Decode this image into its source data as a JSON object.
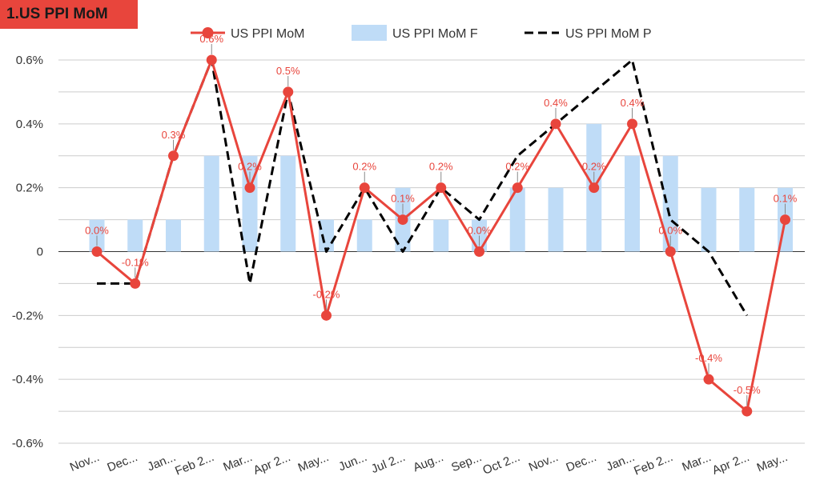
{
  "chart_data": {
    "type": "bar+line",
    "title": "1.US PPI MoM",
    "categories": [
      "Nov...",
      "Dec...",
      "Jan...",
      "Feb 2...",
      "Mar...",
      "Apr 2...",
      "May...",
      "Jun...",
      "Jul 2...",
      "Aug...",
      "Sep...",
      "Oct 2...",
      "Nov...",
      "Dec...",
      "Jan...",
      "Feb 2...",
      "Mar...",
      "Apr 2...",
      "May..."
    ],
    "series": [
      {
        "name": "US PPI MoM",
        "kind": "line-marker",
        "color": "#e8453c",
        "values": [
          0.0,
          -0.1,
          0.3,
          0.6,
          0.2,
          0.5,
          -0.2,
          0.2,
          0.1,
          0.2,
          0.0,
          0.2,
          0.4,
          0.2,
          0.4,
          0.0,
          -0.4,
          -0.5,
          0.1
        ],
        "labels": [
          "0.0%",
          "-0.1%",
          "0.3%",
          "0.6%",
          "0.2%",
          "0.5%",
          "-0.2%",
          "0.2%",
          "0.1%",
          "0.2%",
          "0.0%",
          "0.2%",
          "0.4%",
          "0.2%",
          "0.4%",
          "0.0%",
          "-0.4%",
          "-0.5%",
          "0.1%"
        ]
      },
      {
        "name": "US PPI MoM F",
        "kind": "bar",
        "color": "#bfdcf7",
        "values": [
          0.1,
          0.1,
          0.1,
          0.3,
          0.3,
          0.3,
          0.1,
          0.1,
          0.2,
          0.1,
          0.1,
          0.2,
          0.2,
          0.4,
          0.3,
          0.3,
          0.2,
          0.2,
          0.2
        ]
      },
      {
        "name": "US PPI MoM P",
        "kind": "dashed-line",
        "color": "#000000",
        "values": [
          -0.1,
          -0.1,
          0.3,
          0.6,
          -0.1,
          0.5,
          0.0,
          0.2,
          0.0,
          0.2,
          0.1,
          0.3,
          0.4,
          0.5,
          0.6,
          0.1,
          0.0,
          -0.2,
          null
        ]
      }
    ],
    "yticks": [
      "0.6%",
      "0.4%",
      "0.2%",
      "0",
      "-0.2%",
      "-0.4%",
      "-0.6%"
    ],
    "ytick_values": [
      0.6,
      0.4,
      0.2,
      0,
      -0.2,
      -0.4,
      -0.6
    ],
    "ylim": [
      -0.6,
      0.6
    ],
    "grid": true,
    "legend_position": "top"
  }
}
